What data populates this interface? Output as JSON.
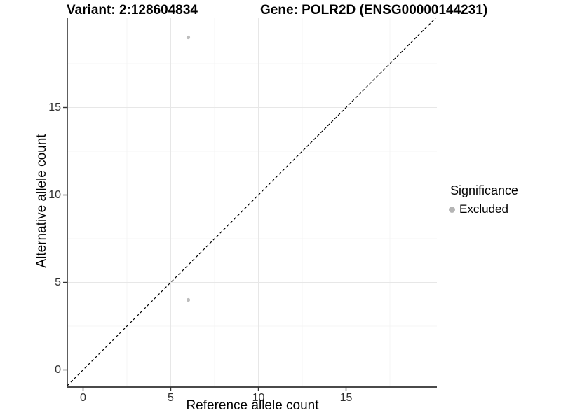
{
  "chart_data": {
    "type": "scatter",
    "title_left": "Variant: 2:128604834",
    "title_right": "Gene: POLR2D (ENSG00000144231)",
    "xlabel": "Reference allele count",
    "ylabel": "Alternative allele count",
    "x_ticks": [
      0,
      5,
      10,
      15
    ],
    "y_ticks": [
      0,
      5,
      10,
      15
    ],
    "x_minor_ticks": [
      2.5,
      7.5,
      12.5,
      17.5
    ],
    "y_minor_ticks": [
      2.5,
      7.5,
      12.5,
      17.5
    ],
    "xlim": [
      -0.9,
      20.1
    ],
    "ylim": [
      -0.98,
      20.1
    ],
    "grid": true,
    "points": [
      {
        "x": 6,
        "y": 19,
        "series": "Excluded"
      },
      {
        "x": 6,
        "y": 4,
        "series": "Excluded"
      }
    ],
    "identity_line": {
      "style": "dashed",
      "slope": 1,
      "intercept": 0,
      "color": "#000000"
    },
    "point_color": "#bdbdbd",
    "legend": {
      "title": "Significance",
      "position": "right",
      "items": [
        {
          "label": "Excluded",
          "color": "#bdbdbd"
        }
      ]
    },
    "colors": {
      "grid_major": "#e7e7e7",
      "grid_minor": "#f4f4f4",
      "axis_line_left": "#1a1a1a",
      "axis_line_bottom": "#4a4a4a",
      "tick_mark": "#333333"
    }
  }
}
